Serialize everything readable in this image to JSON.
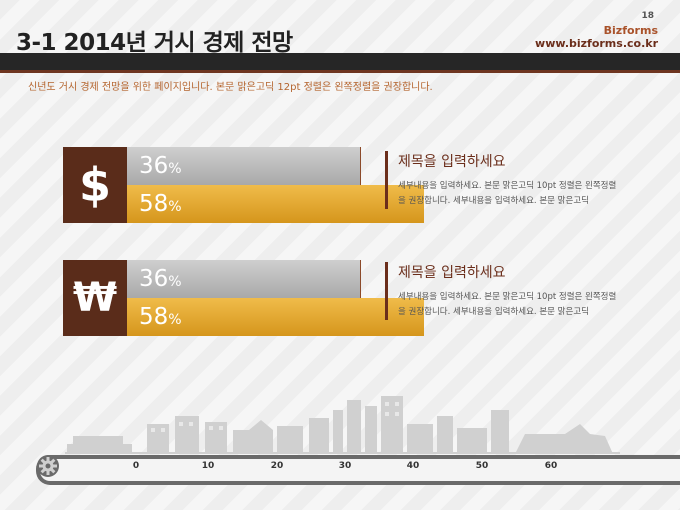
{
  "header": {
    "page_number": "18",
    "brand": "Bizforms",
    "brand_url": "www.bizforms.co.kr",
    "title": "3-1 2014년 거시 경제 전망",
    "subtitle": "신년도 거시 경제 전망을 위한 페이지입니다. 본문 맑은고딕 12pt 정렬은 왼쪽정렬을 권장합니다."
  },
  "rows": [
    {
      "icon": "dollar-sign-icon",
      "icon_glyph": "$",
      "gray_value": "36",
      "gold_value": "58",
      "unit": "%",
      "title": "제목을 입력하세요",
      "body": "세부내용을 입력하세요. 본문 맑은고딕 10pt 정렬은 왼쪽정렬을 권장합니다. 세부내용을 입력하세요. 본문 맑은고딕"
    },
    {
      "icon": "won-sign-icon",
      "icon_glyph": "₩",
      "gray_value": "36",
      "gold_value": "58",
      "unit": "%",
      "title": "제목을 입력하세요",
      "body": "세부내용을 입력하세요. 본문 맑은고딕 10pt 정렬은 왼쪽정렬을 권장합니다. 세부내용을 입력하세요. 본문 맑은고딕"
    }
  ],
  "axis": {
    "ticks": [
      "0",
      "10",
      "20",
      "30",
      "40",
      "50",
      "60"
    ]
  },
  "colors": {
    "accent_brown": "#6b2e1b",
    "gold": "#e3a530",
    "gray_bar": "#b9b9b9",
    "header_bar": "#262626"
  }
}
